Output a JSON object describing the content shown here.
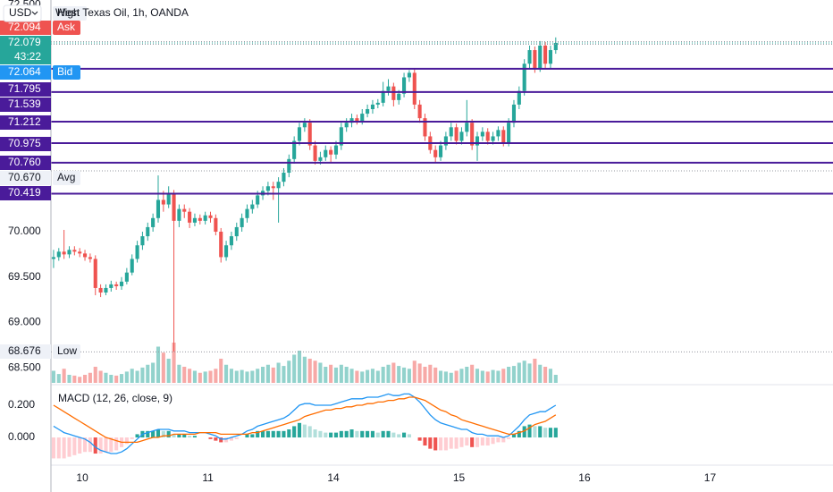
{
  "chart_data": {
    "type": "candlestick",
    "title": "West Texas Oil, 1h, OANDA",
    "currency": "USD",
    "up_color": "#26a69a",
    "down_color": "#ef5350",
    "ylim": [
      68.335,
      72.552
    ],
    "yticks": [
      {
        "value": 72.5,
        "label": "72.500"
      },
      {
        "value": 70,
        "label": "70.000"
      },
      {
        "value": 69.5,
        "label": "69.500"
      },
      {
        "value": 69,
        "label": "69.000"
      },
      {
        "value": 68.5,
        "label": "68.500"
      }
    ],
    "xlim": [
      -0.5,
      149
    ],
    "xticks": [
      {
        "value": 5.5,
        "label": "10"
      },
      {
        "value": 29.5,
        "label": "11"
      },
      {
        "value": 53.5,
        "label": "14"
      },
      {
        "value": 77.5,
        "label": "15"
      },
      {
        "value": 101.5,
        "label": "16"
      },
      {
        "value": 125.5,
        "label": "17"
      }
    ],
    "ohlc": [
      [
        69.7,
        69.8,
        69.6,
        69.72
      ],
      [
        69.72,
        69.82,
        69.68,
        69.78
      ],
      [
        69.78,
        70.02,
        69.7,
        69.75
      ],
      [
        69.75,
        69.84,
        69.71,
        69.8
      ],
      [
        69.8,
        69.84,
        69.74,
        69.78
      ],
      [
        69.78,
        69.82,
        69.72,
        69.76
      ],
      [
        69.76,
        69.8,
        69.68,
        69.72
      ],
      [
        69.72,
        69.76,
        69.66,
        69.7
      ],
      [
        69.7,
        69.74,
        69.3,
        69.38
      ],
      [
        69.38,
        69.42,
        69.28,
        69.33
      ],
      [
        69.33,
        69.42,
        69.3,
        69.38
      ],
      [
        69.38,
        69.46,
        69.34,
        69.42
      ],
      [
        69.42,
        69.45,
        69.36,
        69.4
      ],
      [
        69.4,
        69.5,
        69.36,
        69.45
      ],
      [
        69.45,
        69.6,
        69.42,
        69.55
      ],
      [
        69.55,
        69.75,
        69.52,
        69.7
      ],
      [
        69.7,
        69.9,
        69.66,
        69.85
      ],
      [
        69.85,
        70.0,
        69.8,
        69.95
      ],
      [
        69.95,
        70.1,
        69.9,
        70.05
      ],
      [
        70.05,
        70.2,
        70.0,
        70.15
      ],
      [
        70.15,
        70.62,
        70.1,
        70.35
      ],
      [
        70.35,
        70.45,
        70.22,
        70.3
      ],
      [
        70.3,
        70.5,
        70.26,
        70.42
      ],
      [
        70.42,
        70.46,
        68.68,
        70.12
      ],
      [
        70.12,
        70.3,
        70.05,
        70.25
      ],
      [
        70.25,
        70.3,
        70.15,
        70.22
      ],
      [
        70.22,
        70.26,
        70.04,
        70.1
      ],
      [
        70.1,
        70.2,
        70.06,
        70.15
      ],
      [
        70.15,
        70.19,
        70.08,
        70.12
      ],
      [
        70.12,
        70.22,
        70.08,
        70.18
      ],
      [
        70.18,
        70.22,
        70.1,
        70.15
      ],
      [
        70.15,
        70.19,
        69.96,
        70.0
      ],
      [
        70.0,
        70.04,
        69.66,
        69.72
      ],
      [
        69.72,
        69.9,
        69.68,
        69.85
      ],
      [
        69.85,
        70.0,
        69.8,
        69.95
      ],
      [
        69.95,
        70.1,
        69.9,
        70.05
      ],
      [
        70.05,
        70.2,
        70.0,
        70.15
      ],
      [
        70.15,
        70.3,
        70.1,
        70.25
      ],
      [
        70.25,
        70.35,
        70.2,
        70.3
      ],
      [
        70.3,
        70.45,
        70.26,
        70.4
      ],
      [
        70.4,
        70.5,
        70.35,
        70.45
      ],
      [
        70.45,
        70.55,
        70.4,
        70.5
      ],
      [
        70.5,
        70.55,
        70.35,
        70.48
      ],
      [
        70.48,
        70.6,
        70.1,
        70.55
      ],
      [
        70.55,
        70.7,
        70.5,
        70.65
      ],
      [
        70.65,
        70.85,
        70.6,
        70.8
      ],
      [
        70.8,
        71.05,
        70.75,
        71.0
      ],
      [
        71.0,
        71.2,
        70.95,
        71.15
      ],
      [
        71.15,
        71.25,
        71.1,
        71.2
      ],
      [
        71.2,
        71.24,
        70.9,
        70.95
      ],
      [
        70.95,
        71.0,
        70.74,
        70.78
      ],
      [
        70.78,
        70.88,
        70.74,
        70.82
      ],
      [
        70.82,
        70.95,
        70.78,
        70.9
      ],
      [
        70.9,
        70.94,
        70.76,
        70.85
      ],
      [
        70.85,
        71.0,
        70.8,
        70.95
      ],
      [
        70.95,
        71.2,
        70.9,
        71.15
      ],
      [
        71.15,
        71.25,
        71.1,
        71.2
      ],
      [
        71.2,
        71.3,
        71.15,
        71.25
      ],
      [
        71.25,
        71.29,
        71.18,
        71.22
      ],
      [
        71.22,
        71.35,
        71.18,
        71.3
      ],
      [
        71.3,
        71.4,
        71.26,
        71.35
      ],
      [
        71.35,
        71.45,
        71.3,
        71.4
      ],
      [
        71.4,
        71.46,
        71.36,
        71.42
      ],
      [
        71.42,
        71.65,
        71.38,
        71.55
      ],
      [
        71.55,
        71.68,
        71.5,
        71.6
      ],
      [
        71.6,
        71.64,
        71.38,
        71.45
      ],
      [
        71.45,
        71.56,
        71.4,
        71.52
      ],
      [
        71.52,
        71.75,
        71.48,
        71.7
      ],
      [
        71.7,
        71.78,
        71.65,
        71.75
      ],
      [
        71.75,
        71.79,
        71.35,
        71.4
      ],
      [
        71.4,
        71.45,
        71.2,
        71.25
      ],
      [
        71.25,
        71.3,
        71.0,
        71.05
      ],
      [
        71.05,
        71.1,
        70.86,
        70.9
      ],
      [
        70.9,
        70.95,
        70.76,
        70.82
      ],
      [
        70.82,
        71.0,
        70.78,
        70.95
      ],
      [
        70.95,
        71.1,
        70.9,
        71.05
      ],
      [
        71.05,
        71.2,
        71.0,
        71.15
      ],
      [
        71.15,
        71.19,
        70.96,
        71.0
      ],
      [
        71.0,
        71.15,
        70.96,
        71.1
      ],
      [
        71.1,
        71.45,
        71.05,
        71.2
      ],
      [
        71.2,
        71.24,
        70.9,
        70.95
      ],
      [
        70.95,
        71.1,
        70.78,
        71.05
      ],
      [
        71.05,
        71.15,
        71.0,
        71.1
      ],
      [
        71.1,
        71.14,
        70.96,
        71.0
      ],
      [
        71.0,
        71.1,
        70.96,
        71.05
      ],
      [
        71.05,
        71.16,
        71.0,
        71.12
      ],
      [
        71.12,
        71.16,
        70.94,
        70.98
      ],
      [
        70.98,
        71.25,
        70.94,
        71.2
      ],
      [
        71.2,
        71.45,
        71.15,
        71.4
      ],
      [
        71.4,
        71.6,
        71.35,
        71.55
      ],
      [
        71.55,
        71.9,
        71.5,
        71.85
      ],
      [
        71.85,
        72.05,
        71.8,
        72.0
      ],
      [
        72.0,
        72.04,
        71.75,
        71.8
      ],
      [
        71.8,
        72.1,
        71.76,
        72.05
      ],
      [
        72.05,
        72.09,
        71.8,
        71.85
      ],
      [
        71.85,
        72.05,
        71.8,
        72.0
      ],
      [
        72.0,
        72.14,
        71.96,
        72.079
      ]
    ],
    "volume": {
      "ylim": [
        0,
        100
      ],
      "values": [
        30,
        22,
        35,
        20,
        18,
        15,
        20,
        25,
        40,
        30,
        25,
        20,
        18,
        22,
        28,
        35,
        30,
        38,
        45,
        50,
        90,
        75,
        60,
        100,
        45,
        40,
        35,
        30,
        25,
        28,
        30,
        35,
        60,
        45,
        35,
        30,
        32,
        28,
        30,
        35,
        40,
        45,
        38,
        50,
        42,
        55,
        70,
        80,
        65,
        60,
        55,
        50,
        40,
        45,
        38,
        45,
        40,
        35,
        30,
        28,
        32,
        35,
        30,
        40,
        45,
        50,
        42,
        38,
        35,
        55,
        48,
        40,
        45,
        38,
        30,
        28,
        25,
        30,
        35,
        40,
        45,
        35,
        30,
        28,
        32,
        30,
        35,
        40,
        42,
        50,
        55,
        48,
        60,
        45,
        40,
        35,
        20
      ]
    },
    "levels": {
      "color": "#4a1b9a",
      "values": [
        71.795,
        71.539,
        71.212,
        70.975,
        {
          "value": 70.76,
          "label": "70.760"
        },
        70.419
      ]
    },
    "markers": [
      {
        "name": "High",
        "color": "#eef1f7",
        "text_color": "#131722"
      },
      {
        "name": "Ask",
        "value": 72.094,
        "color": "#ef5350",
        "text_color": "#ffffff"
      },
      {
        "name": "Bid",
        "value": 72.064,
        "color": "#2196f3",
        "text_color": "#ffffff"
      },
      {
        "name": "Avg",
        "value": {
          "value": 70.67,
          "label": "70.670"
        },
        "color": "#eef1f7",
        "text_color": "#131722"
      },
      {
        "name": "Low",
        "value": 68.676,
        "color": "#eef1f7",
        "text_color": "#131722"
      }
    ],
    "last": {
      "value": 72.079,
      "countdown": "43:22",
      "color": "#26a69a"
    },
    "macd": {
      "title": "MACD (12, 26, close, 9)",
      "ylim": [
        -0.172,
        0.3
      ],
      "yticks": [
        {
          "value": 0.2,
          "label": "0.200"
        },
        {
          "value": 0,
          "label": "0.000"
        }
      ],
      "macd": {
        "color": "#2196f3",
        "values": [
          0.07,
          0.05,
          0.03,
          0.02,
          0.01,
          0.0,
          -0.01,
          -0.03,
          -0.06,
          -0.08,
          -0.09,
          -0.1,
          -0.1,
          -0.09,
          -0.07,
          -0.04,
          -0.01,
          0.02,
          0.03,
          0.04,
          0.05,
          0.05,
          0.05,
          0.04,
          0.04,
          0.04,
          0.03,
          0.03,
          0.03,
          0.03,
          0.02,
          0.01,
          -0.01,
          -0.01,
          0.0,
          0.01,
          0.02,
          0.04,
          0.05,
          0.07,
          0.08,
          0.09,
          0.1,
          0.11,
          0.12,
          0.14,
          0.17,
          0.2,
          0.21,
          0.21,
          0.2,
          0.2,
          0.2,
          0.2,
          0.21,
          0.22,
          0.23,
          0.24,
          0.24,
          0.24,
          0.25,
          0.25,
          0.25,
          0.26,
          0.27,
          0.26,
          0.26,
          0.27,
          0.27,
          0.25,
          0.22,
          0.18,
          0.14,
          0.11,
          0.09,
          0.08,
          0.07,
          0.06,
          0.05,
          0.05,
          0.03,
          0.02,
          0.02,
          0.01,
          0.01,
          0.01,
          0.0,
          0.01,
          0.04,
          0.07,
          0.11,
          0.14,
          0.15,
          0.16,
          0.16,
          0.18,
          0.2
        ]
      },
      "signal": {
        "color": "#ff6d00",
        "values": [
          0.2,
          0.18,
          0.16,
          0.14,
          0.12,
          0.1,
          0.08,
          0.06,
          0.04,
          0.02,
          0.0,
          -0.01,
          -0.02,
          -0.03,
          -0.03,
          -0.03,
          -0.03,
          -0.02,
          -0.01,
          0.0,
          0.0,
          0.01,
          0.01,
          0.02,
          0.02,
          0.02,
          0.02,
          0.02,
          0.03,
          0.03,
          0.03,
          0.03,
          0.02,
          0.02,
          0.02,
          0.02,
          0.02,
          0.02,
          0.03,
          0.03,
          0.04,
          0.05,
          0.06,
          0.07,
          0.08,
          0.09,
          0.1,
          0.11,
          0.13,
          0.14,
          0.15,
          0.16,
          0.17,
          0.17,
          0.18,
          0.18,
          0.19,
          0.19,
          0.2,
          0.2,
          0.21,
          0.21,
          0.22,
          0.22,
          0.23,
          0.23,
          0.24,
          0.24,
          0.25,
          0.25,
          0.24,
          0.23,
          0.21,
          0.19,
          0.17,
          0.16,
          0.14,
          0.13,
          0.11,
          0.1,
          0.09,
          0.08,
          0.07,
          0.06,
          0.05,
          0.04,
          0.03,
          0.02,
          0.02,
          0.03,
          0.04,
          0.06,
          0.08,
          0.09,
          0.1,
          0.12,
          0.14
        ]
      },
      "histogram": {
        "colors": [
          "#26a69a",
          "#b2dfdb",
          "#ffcdd2",
          "#ef5350"
        ],
        "values": [
          -0.13,
          -0.13,
          -0.13,
          -0.12,
          -0.11,
          -0.1,
          -0.09,
          -0.09,
          -0.1,
          -0.1,
          -0.09,
          -0.09,
          -0.08,
          -0.06,
          -0.04,
          -0.01,
          0.02,
          0.04,
          0.04,
          0.04,
          0.05,
          0.04,
          0.04,
          0.02,
          0.02,
          0.02,
          0.01,
          0.01,
          0.0,
          0.0,
          -0.01,
          -0.02,
          -0.03,
          -0.03,
          -0.02,
          -0.01,
          0.0,
          0.02,
          0.02,
          0.04,
          0.04,
          0.04,
          0.04,
          0.04,
          0.04,
          0.05,
          0.07,
          0.09,
          0.08,
          0.07,
          0.05,
          0.04,
          0.03,
          0.03,
          0.03,
          0.04,
          0.04,
          0.05,
          0.04,
          0.04,
          0.04,
          0.04,
          0.03,
          0.04,
          0.04,
          0.03,
          0.02,
          0.03,
          0.02,
          0.0,
          -0.02,
          -0.05,
          -0.07,
          -0.08,
          -0.08,
          -0.08,
          -0.07,
          -0.07,
          -0.06,
          -0.05,
          -0.06,
          -0.06,
          -0.05,
          -0.05,
          -0.04,
          -0.03,
          -0.03,
          -0.01,
          0.02,
          0.04,
          0.07,
          0.08,
          0.07,
          0.07,
          0.06,
          0.06,
          0.06
        ]
      }
    }
  }
}
